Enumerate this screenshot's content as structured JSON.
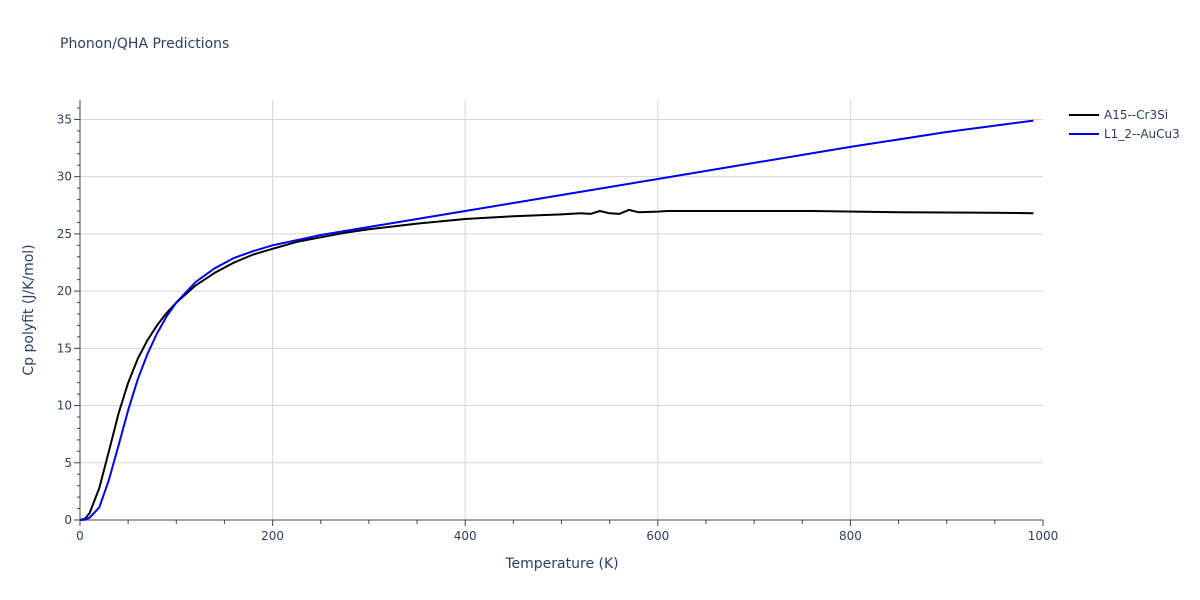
{
  "chart_data": {
    "type": "line",
    "title": "Phonon/QHA Predictions",
    "xlabel": "Temperature (K)",
    "ylabel": "Cp polyfit (J/K/mol)",
    "xlim": [
      0,
      1000
    ],
    "ylim": [
      0,
      36.7
    ],
    "x_ticks": [
      0,
      200,
      400,
      600,
      800,
      1000
    ],
    "y_ticks": [
      0,
      5,
      10,
      15,
      20,
      25,
      30,
      35
    ],
    "grid": true,
    "legend_position": "top-right",
    "series": [
      {
        "name": "A15--Cr3Si",
        "color": "#000000",
        "x": [
          0,
          5,
          10,
          20,
          30,
          40,
          50,
          60,
          70,
          80,
          90,
          100,
          120,
          140,
          160,
          180,
          200,
          225,
          250,
          275,
          300,
          350,
          400,
          450,
          500,
          520,
          530,
          540,
          550,
          560,
          570,
          580,
          600,
          610,
          700,
          760,
          850,
          950,
          990
        ],
        "y": [
          0,
          0.1,
          0.6,
          2.8,
          6.0,
          9.3,
          12.0,
          14.1,
          15.7,
          17.0,
          18.1,
          19.0,
          20.5,
          21.6,
          22.5,
          23.2,
          23.7,
          24.3,
          24.7,
          25.1,
          25.4,
          25.9,
          26.3,
          26.55,
          26.7,
          26.8,
          26.75,
          27.0,
          26.8,
          26.75,
          27.1,
          26.9,
          26.95,
          27.0,
          27.0,
          27.0,
          26.9,
          26.85,
          26.8
        ]
      },
      {
        "name": "L1_2--AuCu3",
        "color": "#0000ee",
        "x": [
          0,
          5,
          10,
          20,
          30,
          40,
          50,
          60,
          70,
          80,
          90,
          100,
          120,
          140,
          160,
          180,
          200,
          250,
          300,
          350,
          400,
          450,
          500,
          550,
          600,
          700,
          800,
          900,
          990
        ],
        "y": [
          0,
          0.02,
          0.2,
          1.1,
          3.5,
          6.5,
          9.6,
          12.3,
          14.5,
          16.3,
          17.8,
          19.0,
          20.8,
          22.0,
          22.9,
          23.5,
          24.0,
          24.9,
          25.6,
          26.3,
          27.0,
          27.7,
          28.4,
          29.1,
          29.8,
          31.2,
          32.6,
          33.9,
          34.9
        ]
      }
    ]
  }
}
